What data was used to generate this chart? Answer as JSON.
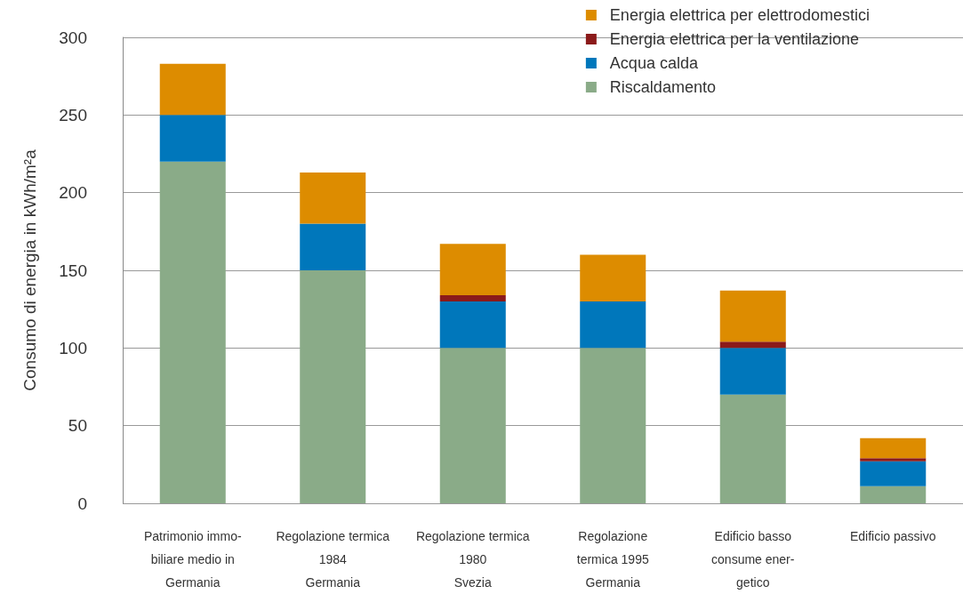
{
  "chart_data": {
    "type": "bar",
    "stacked": true,
    "ylabel": "Consumo di energia in kWh/m²a",
    "categories": [
      "Patrimonio immo-\nbiliare medio in\nGermania",
      "Regolazione termica\n1984\nGermania",
      "Regolazione termica\n1980\nSvezia",
      "Regolazione\ntermica 1995\nGermania",
      "Edificio basso\nconsume ener-\ngetico",
      "Edificio passivo"
    ],
    "series": [
      {
        "name": "Riscaldamento",
        "color": "#8aab88",
        "values": [
          220,
          150,
          100,
          100,
          70,
          11
        ]
      },
      {
        "name": "Acqua calda",
        "color": "#0077bb",
        "values": [
          30,
          30,
          30,
          30,
          30,
          16
        ]
      },
      {
        "name": "Energia elettrica per la ventilazione",
        "color": "#8b1a1a",
        "values": [
          0,
          0,
          4,
          0,
          4,
          2
        ]
      },
      {
        "name": "Energia elettrica per elettrodomestici",
        "color": "#dd8c00",
        "values": [
          33,
          33,
          33,
          30,
          33,
          13
        ]
      }
    ],
    "ylim": [
      0,
      300
    ],
    "yticks": [
      0,
      50,
      100,
      150,
      200,
      250,
      300
    ],
    "grid": "y",
    "legend": "top right"
  }
}
